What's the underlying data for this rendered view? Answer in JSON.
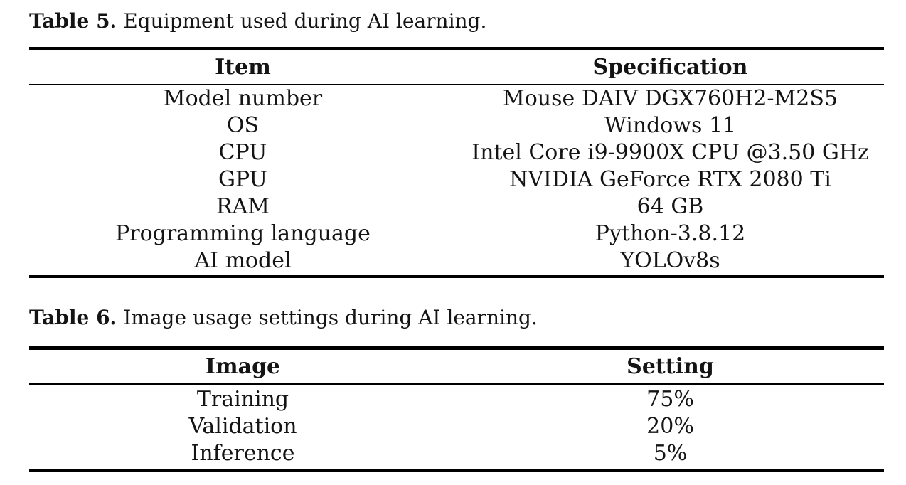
{
  "page": {
    "background": "#ffffff",
    "text_color": "#141414",
    "rule_color": "#000000"
  },
  "tables": [
    {
      "caption_label": "Table 5.",
      "caption_text": "Equipment used during AI learning.",
      "columns": [
        "Item",
        "Specification"
      ],
      "rows": [
        {
          "item": "Model number",
          "spec": "Mouse DAIV DGX760H2-M2S5"
        },
        {
          "item": "OS",
          "spec": "Windows 11"
        },
        {
          "item": "CPU",
          "spec": "Intel Core i9-9900X CPU @3.50 GHz"
        },
        {
          "item": "GPU",
          "spec": "NVIDIA GeForce RTX 2080 Ti"
        },
        {
          "item": "RAM",
          "spec": "64 GB"
        },
        {
          "item": "Programming language",
          "spec": "Python-3.8.12"
        },
        {
          "item": "AI model",
          "spec": "YOLOv8s"
        }
      ]
    },
    {
      "caption_label": "Table 6.",
      "caption_text": "Image usage settings during AI learning.",
      "columns": [
        "Image",
        "Setting"
      ],
      "rows": [
        {
          "item": "Training",
          "spec": "75%"
        },
        {
          "item": "Validation",
          "spec": "20%"
        },
        {
          "item": "Inference",
          "spec": "5%"
        }
      ]
    }
  ]
}
